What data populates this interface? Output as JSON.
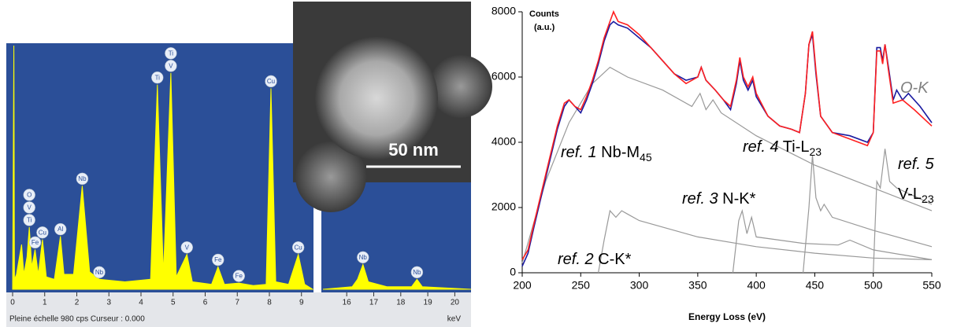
{
  "chart_data": [
    {
      "type": "area",
      "color": "#ffff00",
      "background": "#2b4f98",
      "xlabel": "keV",
      "footer": "Pleine échelle 980 cps  Curseur : 0.000",
      "ylim": [
        0,
        980
      ],
      "panels": [
        {
          "xlim": [
            0,
            9.35
          ],
          "xticks": [
            0,
            1,
            2,
            3,
            4,
            5,
            6,
            7,
            8,
            9
          ],
          "x": [
            0.0,
            0.04,
            0.06,
            0.12,
            0.28,
            0.35,
            0.45,
            0.52,
            0.6,
            0.7,
            0.8,
            0.93,
            1.05,
            1.3,
            1.49,
            1.6,
            1.9,
            2.17,
            2.4,
            2.7,
            3.5,
            4.3,
            4.51,
            4.7,
            4.93,
            5.1,
            5.43,
            5.6,
            6.2,
            6.4,
            6.6,
            7.05,
            7.5,
            7.9,
            8.05,
            8.2,
            8.6,
            8.9,
            9.1,
            9.35
          ],
          "values": [
            0,
            980,
            40,
            60,
            180,
            60,
            130,
            250,
            90,
            160,
            60,
            200,
            50,
            40,
            213,
            60,
            60,
            416,
            70,
            40,
            30,
            40,
            823,
            60,
            870,
            50,
            140,
            30,
            20,
            90,
            20,
            25,
            15,
            20,
            808,
            30,
            20,
            140,
            20,
            0
          ]
        },
        {
          "xlim": [
            15.12,
            20.6
          ],
          "xticks": [
            16,
            17,
            18,
            19,
            20
          ],
          "x": [
            15.12,
            16.2,
            16.4,
            16.6,
            16.8,
            17.5,
            18.4,
            18.6,
            18.8,
            20.6
          ],
          "values": [
            0,
            10,
            40,
            100,
            30,
            10,
            10,
            40,
            10,
            0
          ]
        }
      ],
      "peak_labels": [
        {
          "label": "Ti",
          "x": 0.52
        },
        {
          "label": "V",
          "x": 0.52
        },
        {
          "label": "O",
          "x": 0.52
        },
        {
          "label": "Fe",
          "x": 0.7
        },
        {
          "label": "Cu",
          "x": 0.93
        },
        {
          "label": "Al",
          "x": 1.49
        },
        {
          "label": "Nb",
          "x": 2.17
        },
        {
          "label": "Nb",
          "x": 2.7
        },
        {
          "label": "Ti",
          "x": 4.51
        },
        {
          "label": "V",
          "x": 4.93
        },
        {
          "label": "Ti",
          "x": 4.93
        },
        {
          "label": "V",
          "x": 5.43
        },
        {
          "label": "Fe",
          "x": 6.4
        },
        {
          "label": "Fe",
          "x": 7.05
        },
        {
          "label": "Cu",
          "x": 8.05
        },
        {
          "label": "Cu",
          "x": 8.9
        },
        {
          "label": "Nb",
          "x": 16.6
        },
        {
          "label": "Nb",
          "x": 18.6
        }
      ],
      "inset_scale": "50 nm"
    },
    {
      "type": "line",
      "xlabel": "Energy Loss (eV)",
      "ylabel": [
        "Counts",
        "(a.u.)"
      ],
      "xlim": [
        200,
        550
      ],
      "xticks": [
        200,
        250,
        300,
        350,
        400,
        450,
        500,
        550
      ],
      "ylim": [
        0,
        8000
      ],
      "yticks": [
        0,
        2000,
        4000,
        6000,
        8000
      ],
      "annotations": [
        {
          "ref": "O-K"
        },
        {
          "ref": "ref. 1",
          "label": " Nb-M",
          "sub": "45"
        },
        {
          "ref": "ref. 4",
          "label": " Ti-L",
          "sub": "23"
        },
        {
          "ref": "ref. 5",
          "label": "V-L",
          "sub": "23"
        },
        {
          "ref": "ref. 3",
          "label": " N-K*"
        },
        {
          "ref": "ref. 2",
          "label": " C-K*"
        }
      ],
      "series": [
        {
          "color": "#999999",
          "x": [
            200,
            220,
            240,
            260,
            275,
            290,
            320,
            345,
            352,
            357,
            363,
            370,
            400,
            450,
            500,
            550
          ],
          "values": [
            300,
            2800,
            4600,
            5800,
            6300,
            6000,
            5600,
            5100,
            5500,
            5000,
            5300,
            4900,
            4200,
            3300,
            2600,
            1900
          ]
        },
        {
          "color": "#999999",
          "x": [
            265,
            270,
            275,
            280,
            285,
            290,
            300,
            320,
            350,
            400,
            450,
            500,
            550
          ],
          "values": [
            0,
            1000,
            1900,
            1700,
            1900,
            1800,
            1600,
            1400,
            1100,
            800,
            600,
            450,
            400
          ]
        },
        {
          "color": "#999999",
          "x": [
            380,
            385,
            388,
            392,
            396,
            400,
            420,
            440,
            470,
            480,
            500,
            550
          ],
          "values": [
            0,
            1600,
            1900,
            1200,
            1700,
            1100,
            1000,
            900,
            850,
            1000,
            700,
            400
          ]
        },
        {
          "color": "#999999",
          "x": [
            440,
            445,
            448,
            451,
            455,
            458,
            465,
            500,
            550
          ],
          "values": [
            0,
            2000,
            3600,
            2300,
            1900,
            2100,
            1700,
            1300,
            800
          ]
        },
        {
          "color": "#999999",
          "x": [
            500,
            503,
            506,
            510,
            514,
            520,
            550
          ],
          "values": [
            0,
            2800,
            2600,
            3800,
            2800,
            2600,
            2100
          ]
        },
        {
          "color": "#1a1aa0",
          "x": [
            200,
            205,
            210,
            220,
            230,
            236,
            240,
            245,
            250,
            255,
            260,
            265,
            270,
            275,
            278,
            282,
            290,
            300,
            310,
            320,
            330,
            340,
            350,
            353,
            357,
            365,
            372,
            378,
            383,
            386,
            389,
            393,
            397,
            400,
            410,
            420,
            430,
            437,
            442,
            445,
            448,
            451,
            455,
            465,
            480,
            495,
            500,
            503,
            506,
            508,
            510,
            513,
            517,
            520,
            525,
            530,
            540,
            550
          ],
          "values": [
            200,
            600,
            1400,
            2900,
            4400,
            5100,
            5300,
            5100,
            4900,
            5300,
            5800,
            6400,
            7100,
            7600,
            7700,
            7600,
            7500,
            7200,
            6900,
            6500,
            6100,
            5900,
            6000,
            6300,
            5900,
            5600,
            5300,
            5000,
            5800,
            6500,
            5900,
            5600,
            5900,
            5400,
            4800,
            4500,
            4400,
            4300,
            5500,
            7000,
            7300,
            6100,
            4800,
            4300,
            4200,
            4000,
            4300,
            6900,
            6900,
            6500,
            7000,
            6300,
            5300,
            5600,
            5300,
            5500,
            5100,
            4600
          ]
        },
        {
          "color": "#ff2020",
          "x": [
            200,
            205,
            210,
            220,
            230,
            236,
            240,
            245,
            250,
            255,
            260,
            265,
            270,
            275,
            278,
            282,
            290,
            300,
            310,
            320,
            330,
            340,
            350,
            353,
            357,
            365,
            372,
            378,
            383,
            386,
            389,
            393,
            397,
            400,
            410,
            420,
            430,
            437,
            442,
            445,
            448,
            451,
            455,
            465,
            480,
            495,
            500,
            503,
            506,
            508,
            510,
            513,
            517,
            525,
            535,
            550
          ],
          "values": [
            400,
            700,
            1500,
            3000,
            4500,
            5200,
            5300,
            5100,
            5000,
            5400,
            5900,
            6500,
            7200,
            7700,
            8000,
            7700,
            7600,
            7300,
            6900,
            6500,
            6100,
            5800,
            6000,
            6300,
            5900,
            5600,
            5300,
            5100,
            5900,
            6600,
            6000,
            5700,
            6000,
            5500,
            4800,
            4500,
            4400,
            4300,
            5500,
            7000,
            7400,
            6200,
            4800,
            4300,
            4100,
            3900,
            4300,
            6800,
            6800,
            6400,
            7000,
            6200,
            5200,
            5300,
            5000,
            4500
          ]
        }
      ]
    }
  ]
}
